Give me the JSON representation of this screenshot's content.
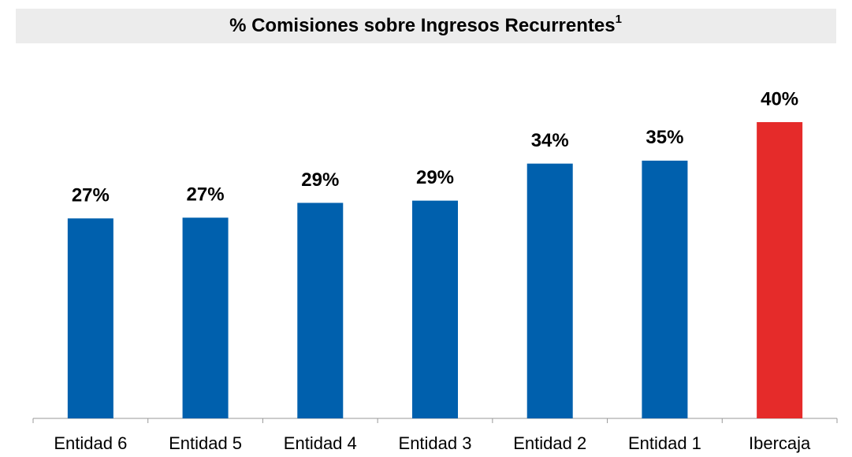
{
  "chart_data": {
    "type": "bar",
    "title": "% Comisiones  sobre Ingresos Recurrentes",
    "title_superscript": "1",
    "categories": [
      "Entidad 6",
      "Entidad 5",
      "Entidad 4",
      "Entidad 3",
      "Entidad 2",
      "Entidad 1",
      "Ibercaja"
    ],
    "values": [
      27,
      27.1,
      29.1,
      29.4,
      34.4,
      34.8,
      40
    ],
    "value_labels": [
      "27%",
      "27%",
      "29%",
      "29%",
      "34%",
      "35%",
      "40%"
    ],
    "colors": [
      "#0060ad",
      "#0060ad",
      "#0060ad",
      "#0060ad",
      "#0060ad",
      "#0060ad",
      "#e52b2a"
    ]
  }
}
